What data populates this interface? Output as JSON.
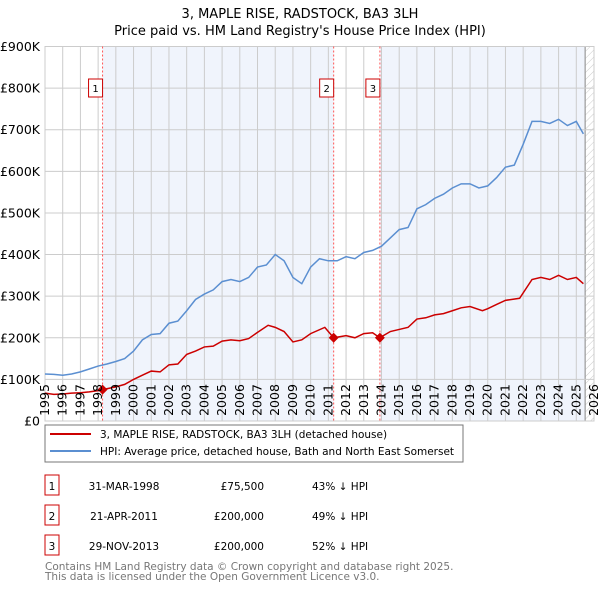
{
  "chart_data": {
    "type": "line",
    "title": "3, MAPLE RISE, RADSTOCK, BA3 3LH",
    "subtitle": "Price paid vs. HM Land Registry's House Price Index (HPI)",
    "xlim": [
      1995,
      2026
    ],
    "ylim": [
      0,
      900000
    ],
    "x_ticks": [
      "1995",
      "1996",
      "1997",
      "1998",
      "1999",
      "2000",
      "2001",
      "2002",
      "2003",
      "2004",
      "2005",
      "2006",
      "2007",
      "2008",
      "2009",
      "2010",
      "2011",
      "2012",
      "2013",
      "2014",
      "2015",
      "2016",
      "2017",
      "2018",
      "2019",
      "2020",
      "2021",
      "2022",
      "2023",
      "2024",
      "2025",
      "2026"
    ],
    "y_ticks": [
      {
        "v": 0,
        "label": "£0"
      },
      {
        "v": 100000,
        "label": "£100K"
      },
      {
        "v": 200000,
        "label": "£200K"
      },
      {
        "v": 300000,
        "label": "£300K"
      },
      {
        "v": 400000,
        "label": "£400K"
      },
      {
        "v": 500000,
        "label": "£500K"
      },
      {
        "v": 600000,
        "label": "£600K"
      },
      {
        "v": 700000,
        "label": "£700K"
      },
      {
        "v": 800000,
        "label": "£800K"
      },
      {
        "v": 900000,
        "label": "£900K"
      }
    ],
    "grid": true,
    "series": [
      {
        "name": "3, MAPLE RISE, RADSTOCK, BA3 3LH (detached house)",
        "color": "#cc0000",
        "x": [
          1995,
          1995.5,
          1996,
          1996.5,
          1997,
          1997.5,
          1998,
          1998.25,
          1999,
          1999.5,
          2000,
          2000.5,
          2001,
          2001.5,
          2002,
          2002.5,
          2003,
          2003.5,
          2004,
          2004.5,
          2005,
          2005.5,
          2006,
          2006.5,
          2007,
          2007.6,
          2008,
          2008.5,
          2009,
          2009.5,
          2010,
          2010.8,
          2011.3,
          2012,
          2012.5,
          2013,
          2013.5,
          2013.9,
          2014.5,
          2015,
          2015.5,
          2016,
          2016.5,
          2017,
          2017.5,
          2018,
          2018.5,
          2019,
          2019.7,
          2020,
          2020.5,
          2021,
          2021.8,
          2022.5,
          2023,
          2023.5,
          2024,
          2024.5,
          2025,
          2025.4
        ],
        "y": [
          67000,
          64000,
          65000,
          67000,
          68000,
          70000,
          73000,
          75500,
          82000,
          88000,
          100000,
          110000,
          120000,
          118000,
          135000,
          137000,
          160000,
          168000,
          178000,
          180000,
          192000,
          195000,
          193000,
          198000,
          213000,
          230000,
          225000,
          215000,
          190000,
          195000,
          210000,
          225000,
          200000,
          205000,
          200000,
          210000,
          212000,
          200000,
          215000,
          220000,
          225000,
          245000,
          248000,
          255000,
          258000,
          265000,
          272000,
          275000,
          265000,
          270000,
          280000,
          290000,
          295000,
          340000,
          345000,
          340000,
          350000,
          340000,
          345000,
          330000
        ]
      },
      {
        "name": "HPI: Average price, detached house, Bath and North East Somerset",
        "color": "#5b8fd1",
        "x": [
          1995,
          1995.5,
          1996,
          1996.5,
          1997,
          1997.5,
          1998,
          1998.5,
          1999,
          1999.5,
          2000,
          2000.5,
          2001,
          2001.5,
          2002,
          2002.5,
          2003,
          2003.5,
          2004,
          2004.5,
          2005,
          2005.5,
          2006,
          2006.5,
          2007,
          2007.5,
          2008,
          2008.5,
          2009,
          2009.5,
          2010,
          2010.5,
          2011,
          2011.5,
          2012,
          2012.5,
          2013,
          2013.5,
          2014,
          2014.5,
          2015,
          2015.5,
          2016,
          2016.5,
          2017,
          2017.5,
          2018,
          2018.5,
          2019,
          2019.5,
          2020,
          2020.5,
          2021,
          2021.5,
          2022,
          2022.5,
          2023,
          2023.5,
          2024,
          2024.5,
          2025,
          2025.4
        ],
        "y": [
          113000,
          112000,
          110000,
          113000,
          118000,
          125000,
          132000,
          137000,
          143000,
          150000,
          168000,
          195000,
          208000,
          210000,
          235000,
          240000,
          265000,
          292000,
          305000,
          315000,
          335000,
          340000,
          335000,
          345000,
          370000,
          375000,
          400000,
          385000,
          345000,
          330000,
          370000,
          390000,
          385000,
          385000,
          395000,
          390000,
          405000,
          410000,
          420000,
          440000,
          460000,
          465000,
          510000,
          520000,
          535000,
          545000,
          560000,
          570000,
          570000,
          560000,
          565000,
          585000,
          610000,
          615000,
          665000,
          720000,
          720000,
          715000,
          725000,
          710000,
          720000,
          690000
        ]
      }
    ],
    "sales": [
      {
        "num": "1",
        "x": 1998.25,
        "date": "31-MAR-1998",
        "price": "£75,500",
        "price_value": 75500,
        "hpi": "43% ↓ HPI"
      },
      {
        "num": "2",
        "x": 2011.3,
        "date": "21-APR-2011",
        "price": "£200,000",
        "price_value": 200000,
        "hpi": "49% ↓ HPI"
      },
      {
        "num": "3",
        "x": 2013.91,
        "date": "29-NOV-2013",
        "price": "£200,000",
        "price_value": 200000,
        "hpi": "52% ↓ HPI"
      }
    ],
    "legend_position": "below"
  },
  "footer": {
    "line1": "Contains HM Land Registry data © Crown copyright and database right 2025.",
    "line2": "This data is licensed under the Open Government Licence v3.0."
  }
}
